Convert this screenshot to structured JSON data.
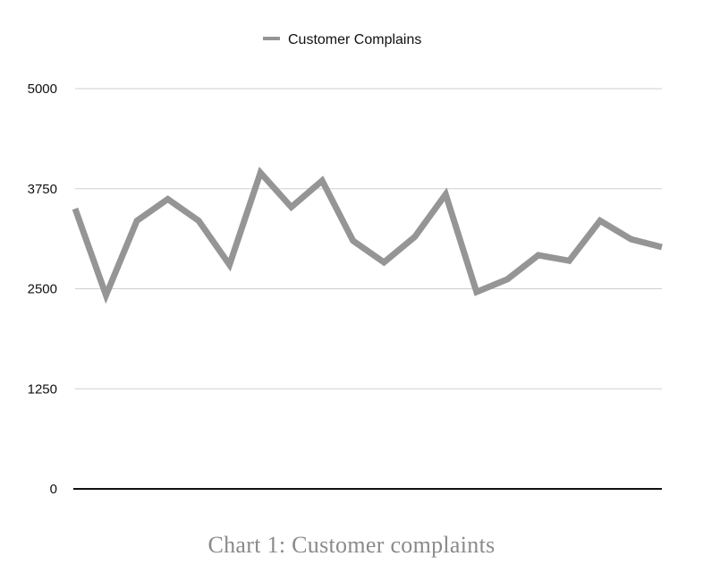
{
  "caption": "Chart 1: Customer complaints",
  "colors": {
    "series": "#959595",
    "grid": "#cfcfcf",
    "baseline": "#111111",
    "caption": "#8a8a8a"
  },
  "chart_data": {
    "type": "line",
    "title": "",
    "xlabel": "",
    "ylabel": "",
    "ylim": [
      0,
      5000
    ],
    "yticks": [
      "0",
      "1250",
      "2500",
      "3750",
      "5000"
    ],
    "grid": true,
    "legend_position": "top-center",
    "series": [
      {
        "name": "Customer Complains",
        "values": [
          3500,
          2420,
          3350,
          3620,
          3350,
          2800,
          3950,
          3520,
          3850,
          3100,
          2830,
          3150,
          3680,
          2460,
          2620,
          2920,
          2850,
          3350,
          3120,
          3020
        ]
      }
    ]
  }
}
